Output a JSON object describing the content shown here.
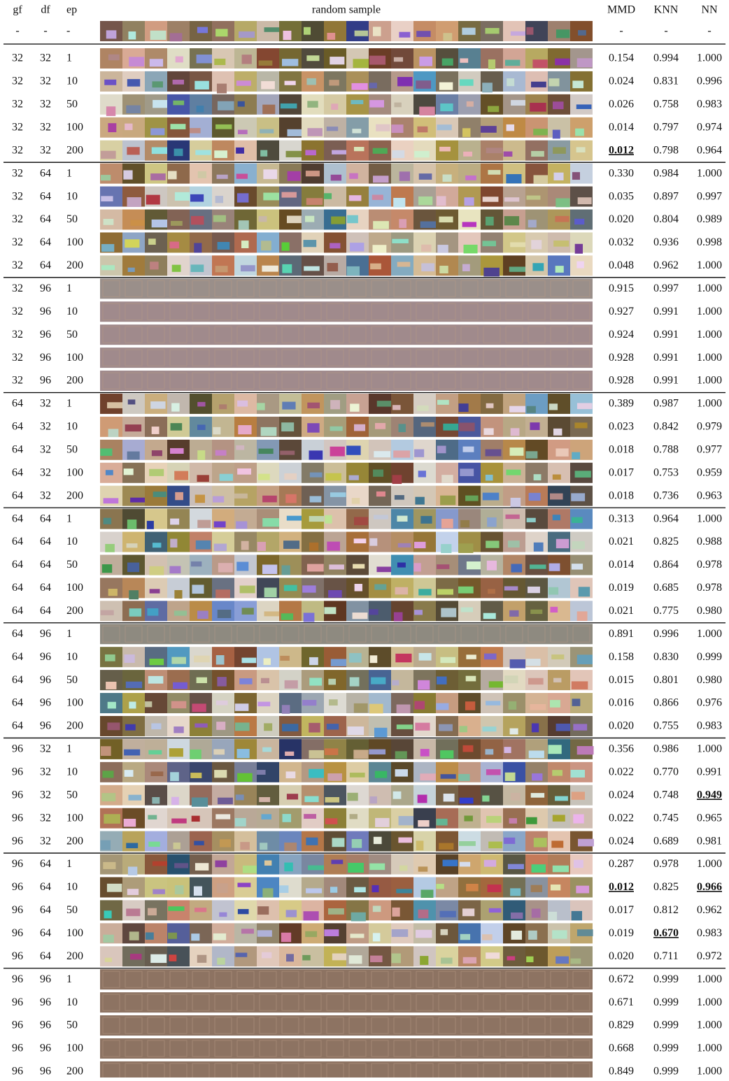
{
  "table": {
    "header": [
      "gf",
      "df",
      "ep",
      "random sample",
      "MMD",
      "KNN",
      "NN"
    ],
    "rows": [
      [
        "-",
        "-",
        "-",
        "-",
        "-",
        "-"
      ],
      [
        "32",
        "32",
        "1",
        "0.154",
        "0.994",
        "1.000"
      ],
      [
        "32",
        "32",
        "10",
        "0.024",
        "0.831",
        "0.996"
      ],
      [
        "32",
        "32",
        "50",
        "0.026",
        "0.758",
        "0.983"
      ],
      [
        "32",
        "32",
        "100",
        "0.014",
        "0.797",
        "0.974"
      ],
      [
        "32",
        "32",
        "200",
        "0.012",
        "0.798",
        "0.964"
      ],
      [
        "32",
        "64",
        "1",
        "0.330",
        "0.984",
        "1.000"
      ],
      [
        "32",
        "64",
        "10",
        "0.035",
        "0.897",
        "0.997"
      ],
      [
        "32",
        "64",
        "50",
        "0.020",
        "0.804",
        "0.989"
      ],
      [
        "32",
        "64",
        "100",
        "0.032",
        "0.936",
        "0.998"
      ],
      [
        "32",
        "64",
        "200",
        "0.048",
        "0.962",
        "1.000"
      ],
      [
        "32",
        "96",
        "1",
        "0.915",
        "0.997",
        "1.000"
      ],
      [
        "32",
        "96",
        "10",
        "0.927",
        "0.991",
        "1.000"
      ],
      [
        "32",
        "96",
        "50",
        "0.924",
        "0.991",
        "1.000"
      ],
      [
        "32",
        "96",
        "100",
        "0.928",
        "0.991",
        "1.000"
      ],
      [
        "32",
        "96",
        "200",
        "0.928",
        "0.991",
        "1.000"
      ],
      [
        "64",
        "32",
        "1",
        "0.389",
        "0.987",
        "1.000"
      ],
      [
        "64",
        "32",
        "10",
        "0.023",
        "0.842",
        "0.979"
      ],
      [
        "64",
        "32",
        "50",
        "0.018",
        "0.788",
        "0.977"
      ],
      [
        "64",
        "32",
        "100",
        "0.017",
        "0.753",
        "0.959"
      ],
      [
        "64",
        "32",
        "200",
        "0.018",
        "0.736",
        "0.963"
      ],
      [
        "64",
        "64",
        "1",
        "0.313",
        "0.964",
        "1.000"
      ],
      [
        "64",
        "64",
        "10",
        "0.021",
        "0.825",
        "0.988"
      ],
      [
        "64",
        "64",
        "50",
        "0.014",
        "0.864",
        "0.978"
      ],
      [
        "64",
        "64",
        "100",
        "0.019",
        "0.685",
        "0.978"
      ],
      [
        "64",
        "64",
        "200",
        "0.021",
        "0.775",
        "0.980"
      ],
      [
        "64",
        "96",
        "1",
        "0.891",
        "0.996",
        "1.000"
      ],
      [
        "64",
        "96",
        "10",
        "0.158",
        "0.830",
        "0.999"
      ],
      [
        "64",
        "96",
        "50",
        "0.015",
        "0.801",
        "0.980"
      ],
      [
        "64",
        "96",
        "100",
        "0.016",
        "0.866",
        "0.976"
      ],
      [
        "64",
        "96",
        "200",
        "0.020",
        "0.755",
        "0.983"
      ],
      [
        "96",
        "32",
        "1",
        "0.356",
        "0.986",
        "1.000"
      ],
      [
        "96",
        "32",
        "10",
        "0.022",
        "0.770",
        "0.991"
      ],
      [
        "96",
        "32",
        "50",
        "0.024",
        "0.748",
        "0.949"
      ],
      [
        "96",
        "32",
        "100",
        "0.022",
        "0.745",
        "0.965"
      ],
      [
        "96",
        "32",
        "200",
        "0.024",
        "0.689",
        "0.981"
      ],
      [
        "96",
        "64",
        "1",
        "0.287",
        "0.978",
        "1.000"
      ],
      [
        "96",
        "64",
        "10",
        "0.012",
        "0.825",
        "0.966"
      ],
      [
        "96",
        "64",
        "50",
        "0.017",
        "0.812",
        "0.962"
      ],
      [
        "96",
        "64",
        "100",
        "0.019",
        "0.670",
        "0.983"
      ],
      [
        "96",
        "64",
        "200",
        "0.020",
        "0.711",
        "0.972"
      ],
      [
        "96",
        "96",
        "1",
        "0.672",
        "0.999",
        "1.000"
      ],
      [
        "96",
        "96",
        "10",
        "0.671",
        "0.999",
        "1.000"
      ],
      [
        "96",
        "96",
        "50",
        "0.829",
        "0.999",
        "1.000"
      ],
      [
        "96",
        "96",
        "100",
        "0.668",
        "0.999",
        "1.000"
      ],
      [
        "96",
        "96",
        "200",
        "0.849",
        "0.999",
        "1.000"
      ]
    ],
    "bold_underlined_cells": [
      [
        5,
        3
      ],
      [
        33,
        5
      ],
      [
        37,
        3
      ],
      [
        37,
        5
      ],
      [
        39,
        4
      ]
    ]
  }
}
